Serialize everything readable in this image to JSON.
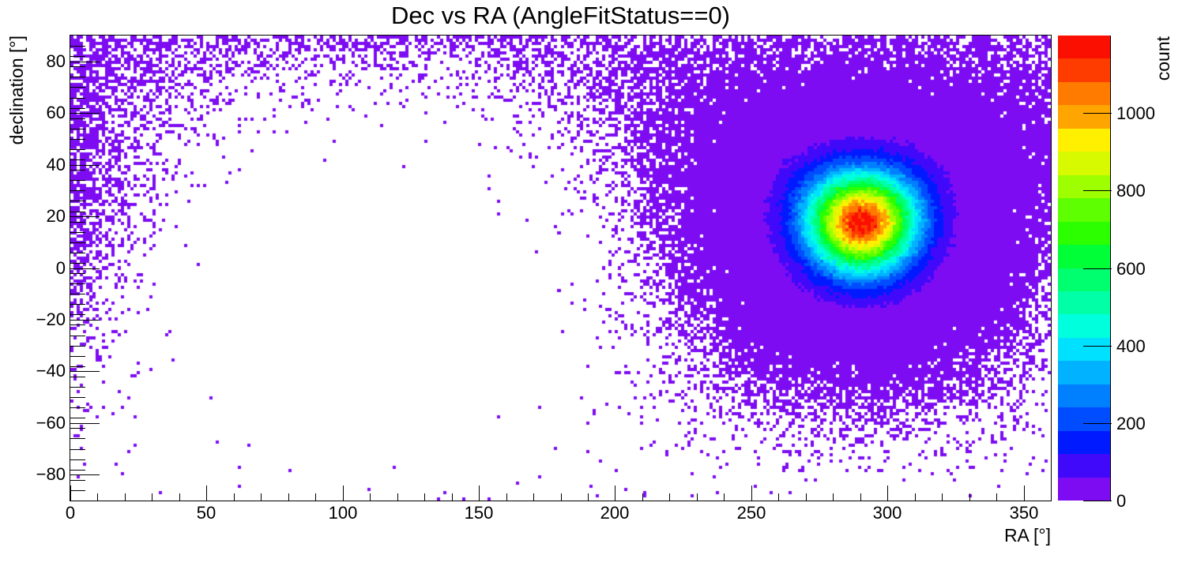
{
  "title": "Dec vs RA (AngleFitStatus==0)",
  "axes": {
    "x": {
      "label": "RA [°]",
      "min": 0,
      "max": 360,
      "major_step": 50,
      "minor_step": 10,
      "ticks": [
        {
          "v": 0,
          "label": "0"
        },
        {
          "v": 50,
          "label": "50"
        },
        {
          "v": 100,
          "label": "100"
        },
        {
          "v": 150,
          "label": "150"
        },
        {
          "v": 200,
          "label": "200"
        },
        {
          "v": 250,
          "label": "250"
        },
        {
          "v": 300,
          "label": "300"
        },
        {
          "v": 350,
          "label": "350"
        }
      ]
    },
    "y": {
      "label": "declination [°]",
      "min": -90,
      "max": 90,
      "major_step": 20,
      "minor_step": 4,
      "ticks": [
        {
          "v": 80,
          "label": "80"
        },
        {
          "v": 60,
          "label": "60"
        },
        {
          "v": 40,
          "label": "40"
        },
        {
          "v": 20,
          "label": "20"
        },
        {
          "v": 0,
          "label": "0"
        },
        {
          "v": -20,
          "label": "−20"
        },
        {
          "v": -40,
          "label": "−40"
        },
        {
          "v": -60,
          "label": "−60"
        },
        {
          "v": -80,
          "label": "−80"
        }
      ]
    }
  },
  "colorbar": {
    "label": "count",
    "min": 0,
    "max": 1200,
    "levels": 20,
    "ticks": [
      {
        "v": 0,
        "label": "0"
      },
      {
        "v": 200,
        "label": "200"
      },
      {
        "v": 400,
        "label": "400"
      },
      {
        "v": 600,
        "label": "600"
      },
      {
        "v": 800,
        "label": "800"
      },
      {
        "v": 1000,
        "label": "1000"
      }
    ],
    "palette": [
      "#7d0cf2",
      "#4109fa",
      "#001aff",
      "#004cff",
      "#0080ff",
      "#00b2ff",
      "#00e0ff",
      "#00ffdd",
      "#00ffa6",
      "#00ff6e",
      "#00ff37",
      "#2bff00",
      "#5eff00",
      "#9dff00",
      "#d7fa00",
      "#fff000",
      "#ffa500",
      "#ff7b00",
      "#ff3c00",
      "#fa0f00"
    ]
  },
  "chart_data": {
    "type": "heatmap",
    "title": "Dec vs RA (AngleFitStatus==0)",
    "xlabel": "RA [°]",
    "ylabel": "declination [°]",
    "zlabel": "count",
    "xlim": [
      0,
      360
    ],
    "ylim": [
      -90,
      90
    ],
    "zlim": [
      0,
      1200
    ],
    "grid": false,
    "legend_position": "right-colorbar",
    "bins": {
      "nx": 310,
      "ny": 147
    },
    "peak_bin_count": 1150,
    "core": {
      "ra_deg": 290.5,
      "dec_deg": 17.5,
      "amplitude": 1150,
      "sigma_deg": 13
    },
    "halo": {
      "ra_deg": 290.5,
      "dec_deg": 17.5,
      "amplitude": 25,
      "sigma_deg": 28
    },
    "sampling": "poisson",
    "seed": 987654321,
    "empty_bin_color": "#ffffff",
    "notes": "Counts per (RA,Dec) bin = core Gaussian + wide halo, both in great-circle angular distance from the source; halo wraps around RA=0/360 and spreads over all RA near the poles; bins with zero counts drawn white."
  }
}
